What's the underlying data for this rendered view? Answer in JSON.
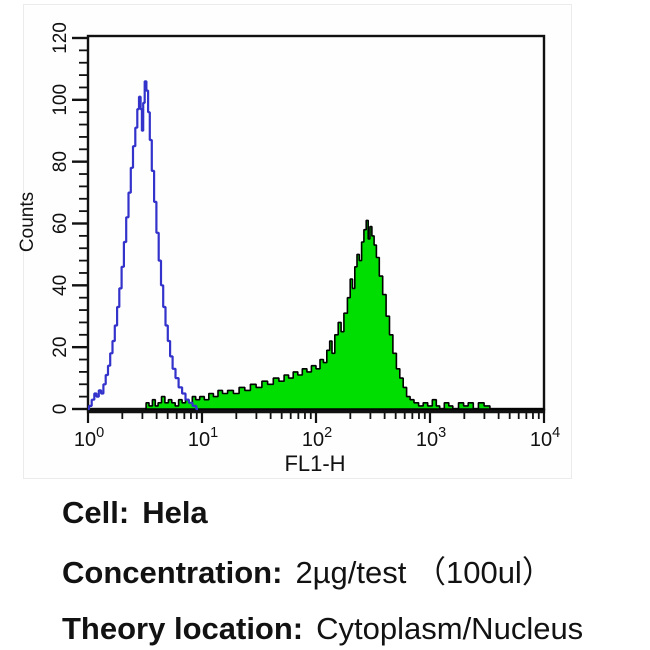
{
  "chart_data": {
    "type": "area",
    "title": "",
    "xlabel": "FL1-H",
    "ylabel": "Counts",
    "x_scale": "log10",
    "xlim_log": [
      0,
      4
    ],
    "ylim": [
      0,
      120
    ],
    "y_ticks": [
      "0",
      "20",
      "40",
      "60",
      "80",
      "100",
      "120"
    ],
    "y_minor_step": 4,
    "x_tick_base": "10",
    "x_tick_exponents": [
      "0",
      "1",
      "2",
      "3",
      "4"
    ],
    "grid": false,
    "legend": "none",
    "series": [
      {
        "name": "control (blue open histogram)",
        "style": "line",
        "color": "#3333cc",
        "peak_log10_x": 0.505,
        "peak_count": 106,
        "points": [
          [
            0.0,
            0
          ],
          [
            0.02,
            1
          ],
          [
            0.045,
            3
          ],
          [
            0.065,
            5
          ],
          [
            0.085,
            4
          ],
          [
            0.105,
            6
          ],
          [
            0.125,
            5
          ],
          [
            0.145,
            8
          ],
          [
            0.165,
            11
          ],
          [
            0.185,
            14
          ],
          [
            0.205,
            18
          ],
          [
            0.225,
            22
          ],
          [
            0.245,
            27
          ],
          [
            0.265,
            33
          ],
          [
            0.285,
            39
          ],
          [
            0.305,
            46
          ],
          [
            0.325,
            54
          ],
          [
            0.345,
            62
          ],
          [
            0.365,
            70
          ],
          [
            0.385,
            78
          ],
          [
            0.405,
            85
          ],
          [
            0.425,
            91
          ],
          [
            0.44,
            97
          ],
          [
            0.455,
            101
          ],
          [
            0.468,
            97
          ],
          [
            0.478,
            90
          ],
          [
            0.49,
            99
          ],
          [
            0.505,
            106
          ],
          [
            0.52,
            103
          ],
          [
            0.535,
            96
          ],
          [
            0.55,
            87
          ],
          [
            0.57,
            77
          ],
          [
            0.59,
            67
          ],
          [
            0.61,
            57
          ],
          [
            0.63,
            48
          ],
          [
            0.65,
            40
          ],
          [
            0.67,
            33
          ],
          [
            0.69,
            27
          ],
          [
            0.71,
            22
          ],
          [
            0.73,
            17
          ],
          [
            0.755,
            13
          ],
          [
            0.78,
            10
          ],
          [
            0.81,
            7
          ],
          [
            0.84,
            5
          ],
          [
            0.87,
            3
          ],
          [
            0.9,
            2
          ],
          [
            0.935,
            1
          ],
          [
            0.965,
            0
          ]
        ]
      },
      {
        "name": "stained (green filled histogram)",
        "style": "filled",
        "fill": "#00dd00",
        "outline": "#000000",
        "peak_log10_x": 2.45,
        "peak_count": 61,
        "points": [
          [
            0.5,
            0
          ],
          [
            0.52,
            2
          ],
          [
            0.55,
            1
          ],
          [
            0.58,
            3
          ],
          [
            0.6,
            1
          ],
          [
            0.63,
            2
          ],
          [
            0.66,
            4
          ],
          [
            0.69,
            2
          ],
          [
            0.72,
            3
          ],
          [
            0.75,
            2
          ],
          [
            0.78,
            1
          ],
          [
            0.81,
            3
          ],
          [
            0.84,
            2
          ],
          [
            0.87,
            3
          ],
          [
            0.9,
            2
          ],
          [
            0.93,
            4
          ],
          [
            0.96,
            3
          ],
          [
            1.0,
            4
          ],
          [
            1.04,
            3
          ],
          [
            1.08,
            5
          ],
          [
            1.12,
            4
          ],
          [
            1.16,
            6
          ],
          [
            1.2,
            5
          ],
          [
            1.25,
            6
          ],
          [
            1.3,
            5
          ],
          [
            1.35,
            7
          ],
          [
            1.4,
            6
          ],
          [
            1.45,
            8
          ],
          [
            1.5,
            7
          ],
          [
            1.55,
            9
          ],
          [
            1.6,
            8
          ],
          [
            1.65,
            10
          ],
          [
            1.7,
            9
          ],
          [
            1.74,
            11
          ],
          [
            1.78,
            10
          ],
          [
            1.82,
            12
          ],
          [
            1.86,
            11
          ],
          [
            1.9,
            13
          ],
          [
            1.94,
            12
          ],
          [
            1.98,
            14
          ],
          [
            2.02,
            13
          ],
          [
            2.05,
            16
          ],
          [
            2.08,
            15
          ],
          [
            2.11,
            19
          ],
          [
            2.13,
            22
          ],
          [
            2.15,
            18
          ],
          [
            2.18,
            24
          ],
          [
            2.21,
            28
          ],
          [
            2.23,
            25
          ],
          [
            2.26,
            31
          ],
          [
            2.29,
            36
          ],
          [
            2.31,
            42
          ],
          [
            2.33,
            39
          ],
          [
            2.35,
            46
          ],
          [
            2.37,
            50
          ],
          [
            2.39,
            48
          ],
          [
            2.41,
            54
          ],
          [
            2.43,
            58
          ],
          [
            2.45,
            61
          ],
          [
            2.465,
            55
          ],
          [
            2.48,
            59
          ],
          [
            2.5,
            56
          ],
          [
            2.52,
            53
          ],
          [
            2.54,
            49
          ],
          [
            2.57,
            43
          ],
          [
            2.6,
            37
          ],
          [
            2.63,
            30
          ],
          [
            2.66,
            24
          ],
          [
            2.69,
            18
          ],
          [
            2.72,
            13
          ],
          [
            2.75,
            10
          ],
          [
            2.78,
            7
          ],
          [
            2.81,
            4
          ],
          [
            2.84,
            3
          ],
          [
            2.88,
            2
          ],
          [
            2.92,
            1
          ],
          [
            2.96,
            2
          ],
          [
            3.0,
            1
          ],
          [
            3.04,
            3
          ],
          [
            3.07,
            1
          ],
          [
            3.1,
            0
          ],
          [
            3.15,
            2
          ],
          [
            3.18,
            1
          ],
          [
            3.22,
            0
          ],
          [
            3.28,
            2
          ],
          [
            3.31,
            1
          ],
          [
            3.36,
            2
          ],
          [
            3.4,
            0
          ],
          [
            3.45,
            2
          ],
          [
            3.5,
            1
          ],
          [
            3.55,
            0
          ],
          [
            3.7,
            0
          ],
          [
            3.85,
            0
          ],
          [
            4.0,
            0
          ]
        ]
      }
    ]
  },
  "info": {
    "lines": [
      {
        "label": "Cell:",
        "value": "Hela",
        "value_bold": true
      },
      {
        "label": "Concentration:",
        "value": "2µg/test （100ul）",
        "value_bold": false
      },
      {
        "label": "Theory location:",
        "value": "Cytoplasm/Nucleus",
        "value_bold": false
      }
    ]
  }
}
